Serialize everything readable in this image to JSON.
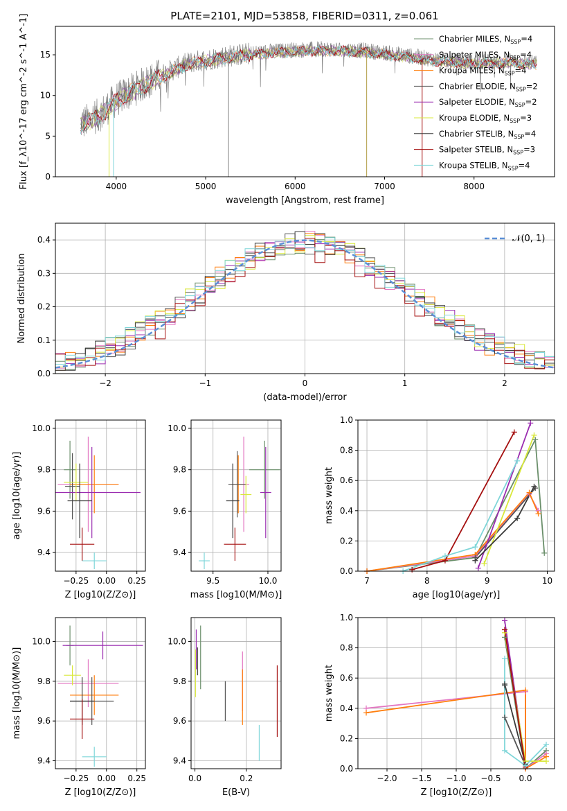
{
  "figure_title": "PLATE=2101, MJD=53858, FIBERID=0311, z=0.061",
  "series_colors": [
    "#6b8f6b",
    "#e377c2",
    "#ff7f0e",
    "#555555",
    "#9a2cb0",
    "#d9e83a",
    "#3a3a3a",
    "#a51010",
    "#7fd6d9"
  ],
  "chart_data": [
    {
      "id": "spectrum",
      "type": "line",
      "title": "PLATE=2101, MJD=53858, FIBERID=0311, z=0.061",
      "xlabel": "wavelength [Angstrom, rest frame]",
      "ylabel": "Flux [f_λ10^-17 erg cm^-2 s^-1 A^-1]",
      "xlim": [
        3320,
        8900
      ],
      "ylim": [
        0,
        18.5
      ],
      "xticks": [
        "4000",
        "5000",
        "6000",
        "7000",
        "8000"
      ],
      "yticks": [
        "0",
        "5",
        "10",
        "15"
      ],
      "legend": [
        "Chabrier MILES, N_SSP=4",
        "Salpeter MILES, N_SSP=4",
        "Kroupa MILES, N_SSP=4",
        "Chabrier ELODIE, N_SSP=2",
        "Salpeter ELODIE, N_SSP=2",
        "Kroupa ELODIE, N_SSP=3",
        "Chabrier STELIB, N_SSP=4",
        "Salpeter STELIB, N_SSP=3",
        "Kroupa STELIB, N_SSP=4"
      ],
      "legend_loc": "right",
      "data_envelope": {
        "x": [
          3600,
          3800,
          4000,
          4400,
          4800,
          5200,
          5600,
          6000,
          6400,
          6800,
          7200,
          7600,
          8000,
          8400,
          8700
        ],
        "y": [
          6.5,
          7.5,
          9.5,
          12.0,
          14.0,
          14.8,
          15.3,
          15.6,
          15.7,
          15.5,
          15.0,
          14.4,
          14.1,
          14.2,
          14.0
        ]
      }
    },
    {
      "id": "residuals",
      "type": "histogram",
      "xlabel": "(data-model)/error",
      "ylabel": "Normed distribution",
      "xlim": [
        -2.5,
        2.5
      ],
      "ylim": [
        0,
        0.45
      ],
      "xticks": [
        "−2",
        "−1",
        "0",
        "1",
        "2"
      ],
      "yticks": [
        "0.0",
        "0.1",
        "0.2",
        "0.3",
        "0.4"
      ],
      "legend": [
        "𝒩(0, 1)"
      ],
      "legend_loc": "top-right",
      "reference": "normal(0,1)"
    },
    {
      "id": "age_vs_Z",
      "type": "errorbar",
      "xlabel": "Z [log10(Z/Z⊙)]",
      "ylabel": "age  [log10(age/yr)]",
      "xlim": [
        -0.42,
        0.32
      ],
      "ylim": [
        9.31,
        10.04
      ],
      "xticks": [
        "−0.25",
        "0.00",
        "0.25"
      ],
      "yticks": [
        "9.4",
        "9.6",
        "9.8",
        "10.0"
      ],
      "points": [
        {
          "x": -0.3,
          "xerr": 0.05,
          "y": 9.8,
          "yerr": 0.14
        },
        {
          "x": -0.15,
          "xerr": 0.25,
          "y": 9.73,
          "yerr": 0.23
        },
        {
          "x": -0.1,
          "xerr": 0.2,
          "y": 9.73,
          "yerr": 0.14
        },
        {
          "x": -0.28,
          "xerr": 0.06,
          "y": 9.72,
          "yerr": 0.16
        },
        {
          "x": -0.12,
          "xerr": 0.4,
          "y": 9.69,
          "yerr": 0.22
        },
        {
          "x": -0.25,
          "xerr": 0.1,
          "y": 9.74,
          "yerr": 0.09
        },
        {
          "x": -0.22,
          "xerr": 0.1,
          "y": 9.65,
          "yerr": 0.18
        },
        {
          "x": -0.2,
          "xerr": 0.1,
          "y": 9.44,
          "yerr": 0.08
        },
        {
          "x": -0.1,
          "xerr": 0.1,
          "y": 9.36,
          "yerr": 0.04
        }
      ]
    },
    {
      "id": "age_vs_mass",
      "type": "errorbar",
      "xlabel": "mass [log10(M/M⊙)]",
      "ylabel": "",
      "xlim": [
        9.3,
        10.12
      ],
      "ylim": [
        9.31,
        10.04
      ],
      "xticks": [
        "9.5",
        "10.0"
      ],
      "yticks": [
        "9.4",
        "9.6",
        "9.8",
        "10.0"
      ],
      "points": [
        {
          "x": 9.97,
          "xerr": 0.14,
          "y": 9.8,
          "yerr": 0.14
        },
        {
          "x": 9.78,
          "xerr": 0.05,
          "y": 9.73,
          "yerr": 0.23
        },
        {
          "x": 9.73,
          "xerr": 0.07,
          "y": 9.73,
          "yerr": 0.14
        },
        {
          "x": 9.72,
          "xerr": 0.08,
          "y": 9.73,
          "yerr": 0.16
        },
        {
          "x": 9.98,
          "xerr": 0.05,
          "y": 9.69,
          "yerr": 0.22
        },
        {
          "x": 9.8,
          "xerr": 0.05,
          "y": 9.68,
          "yerr": 0.09
        },
        {
          "x": 9.68,
          "xerr": 0.06,
          "y": 9.65,
          "yerr": 0.18
        },
        {
          "x": 9.7,
          "xerr": 0.1,
          "y": 9.44,
          "yerr": 0.08
        },
        {
          "x": 9.42,
          "xerr": 0.05,
          "y": 9.36,
          "yerr": 0.04
        }
      ]
    },
    {
      "id": "weight_vs_age",
      "type": "line",
      "xlabel": "age  [log10(age/yr)]",
      "ylabel": "mass weight",
      "xlim": [
        6.85,
        10.12
      ],
      "ylim": [
        0,
        1
      ],
      "xticks": [
        "7",
        "8",
        "9",
        "10"
      ],
      "yticks": [
        "0.0",
        "0.2",
        "0.4",
        "0.6",
        "0.8",
        "1.0"
      ],
      "series": [
        {
          "x": [
            7.0,
            8.8,
            9.8,
            9.95
          ],
          "y": [
            0.0,
            0.09,
            0.87,
            0.12
          ]
        },
        {
          "x": [
            7.0,
            8.8,
            9.7,
            9.85
          ],
          "y": [
            0.0,
            0.1,
            0.51,
            0.4
          ]
        },
        {
          "x": [
            7.0,
            8.8,
            9.7,
            9.85
          ],
          "y": [
            0.0,
            0.11,
            0.52,
            0.38
          ]
        },
        {
          "x": [
            8.8,
            9.8
          ],
          "y": [
            0.09,
            0.55
          ]
        },
        {
          "x": [
            8.85,
            9.72
          ],
          "y": [
            0.02,
            0.98
          ]
        },
        {
          "x": [
            8.95,
            9.78
          ],
          "y": [
            0.05,
            0.9
          ]
        },
        {
          "x": [
            8.8,
            9.5,
            9.78
          ],
          "y": [
            0.07,
            0.35,
            0.56
          ]
        },
        {
          "x": [
            7.75,
            8.3,
            9.45
          ],
          "y": [
            0.01,
            0.07,
            0.92
          ]
        },
        {
          "x": [
            7.6,
            8.3,
            8.8,
            9.5
          ],
          "y": [
            0.0,
            0.1,
            0.16,
            0.73
          ]
        }
      ]
    },
    {
      "id": "mass_vs_Z",
      "type": "errorbar",
      "xlabel": "Z [log10(Z/Z⊙)]",
      "ylabel": "mass [log10(M/M⊙)]",
      "xlim": [
        -0.42,
        0.32
      ],
      "ylim": [
        9.36,
        10.12
      ],
      "xticks": [
        "−0.25",
        "0.00",
        "0.25"
      ],
      "yticks": [
        "9.4",
        "9.6",
        "9.8",
        "10.0"
      ],
      "points": [
        {
          "x": -0.3,
          "xerr": 0.03,
          "y": 9.98,
          "yerr": 0.1
        },
        {
          "x": -0.15,
          "xerr": 0.25,
          "y": 9.79,
          "yerr": 0.12
        },
        {
          "x": -0.1,
          "xerr": 0.2,
          "y": 9.73,
          "yerr": 0.1
        },
        {
          "x": -0.12,
          "xerr": 0.18,
          "y": 9.7,
          "yerr": 0.12
        },
        {
          "x": -0.03,
          "xerr": 0.33,
          "y": 9.98,
          "yerr": 0.07
        },
        {
          "x": -0.28,
          "xerr": 0.07,
          "y": 9.83,
          "yerr": 0.05
        },
        {
          "x": -0.2,
          "xerr": 0.1,
          "y": 9.7,
          "yerr": 0.12
        },
        {
          "x": -0.2,
          "xerr": 0.1,
          "y": 9.61,
          "yerr": 0.1
        },
        {
          "x": -0.1,
          "xerr": 0.1,
          "y": 9.42,
          "yerr": 0.05
        }
      ]
    },
    {
      "id": "mass_vs_ebv",
      "type": "errorbar",
      "xlabel": "E(B-V)",
      "ylabel": "",
      "xlim": [
        -0.015,
        0.335
      ],
      "ylim": [
        9.36,
        10.12
      ],
      "xticks": [
        "0.0",
        "0.2"
      ],
      "yticks": [
        "9.4",
        "9.6",
        "9.8",
        "10.0"
      ],
      "points": [
        {
          "x": 0.022,
          "y": 9.92,
          "yerr": 0.16
        },
        {
          "x": 0.185,
          "y": 9.8,
          "yerr": 0.15
        },
        {
          "x": 0.185,
          "y": 9.72,
          "yerr": 0.14
        },
        {
          "x": 0.118,
          "y": 9.7,
          "yerr": 0.1
        },
        {
          "x": 0.005,
          "y": 9.96,
          "yerr": 0.1
        },
        {
          "x": 0.002,
          "y": 9.84,
          "yerr": 0.12
        },
        {
          "x": 0.01,
          "y": 9.9,
          "yerr": 0.07
        },
        {
          "x": 0.32,
          "y": 9.7,
          "yerr": 0.18
        },
        {
          "x": 0.25,
          "y": 9.49,
          "yerr": 0.09
        }
      ]
    },
    {
      "id": "weight_vs_Z",
      "type": "line",
      "xlabel": "Z [log10(Z/Z⊙)]",
      "ylabel": "mass weight",
      "xlim": [
        -2.42,
        0.42
      ],
      "ylim": [
        0,
        1
      ],
      "xticks": [
        "−2.0",
        "−1.5",
        "−1.0",
        "−0.5",
        "0.0"
      ],
      "yticks": [
        "0.0",
        "0.2",
        "0.4",
        "0.6",
        "0.8",
        "1.0"
      ],
      "series": [
        {
          "x": [
            -0.3,
            0.0,
            0.3
          ],
          "y": [
            0.87,
            0.0,
            0.12
          ]
        },
        {
          "x": [
            -2.3,
            0.0,
            0.0,
            0.3
          ],
          "y": [
            0.4,
            0.51,
            0.0,
            0.1
          ]
        },
        {
          "x": [
            -2.3,
            0.0,
            0.0,
            0.3
          ],
          "y": [
            0.37,
            0.52,
            0.0,
            0.08
          ]
        },
        {
          "x": [
            -0.3,
            -0.3,
            0.0
          ],
          "y": [
            0.55,
            0.34,
            0.02
          ]
        },
        {
          "x": [
            -0.3,
            0.0
          ],
          "y": [
            0.98,
            0.02
          ]
        },
        {
          "x": [
            -0.3,
            0.0,
            0.3
          ],
          "y": [
            0.9,
            0.05,
            0.05
          ]
        },
        {
          "x": [
            -0.3,
            0.0
          ],
          "y": [
            0.56,
            0.03
          ]
        },
        {
          "x": [
            -0.3,
            0.0
          ],
          "y": [
            0.92,
            0.01
          ]
        },
        {
          "x": [
            -0.3,
            -0.3,
            0.0,
            0.3
          ],
          "y": [
            0.73,
            0.12,
            0.02,
            0.16
          ]
        }
      ]
    }
  ]
}
